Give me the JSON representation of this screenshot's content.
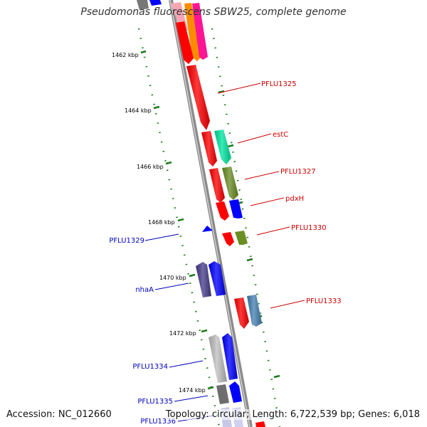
{
  "title": "Pseudomonas fluorescens SBW25, complete genome",
  "footer": {
    "accession": "Accession: NC_012660",
    "summary": "Topology: circular; Length: 6,722,539 bp; Genes: 6,018"
  },
  "colors": {
    "backbone": "#8a8a8a",
    "tick": "#1b7a1b",
    "label_forward": "#cc0000",
    "label_reverse": "#0000bb"
  },
  "ticks": [
    "1462 kbp",
    "1464 kbp",
    "1466 kbp",
    "1468 kbp",
    "1470 kbp",
    "1472 kbp",
    "1474 kbp"
  ],
  "labels_right": [
    "PFLU1325",
    "estC",
    "PFLU1327",
    "pdxH",
    "PFLU1330",
    "PFLU1333"
  ],
  "labels_left": [
    "PFLU1329",
    "nhaA",
    "PFLU1334",
    "PFLU1335",
    "PFLU1336"
  ]
}
